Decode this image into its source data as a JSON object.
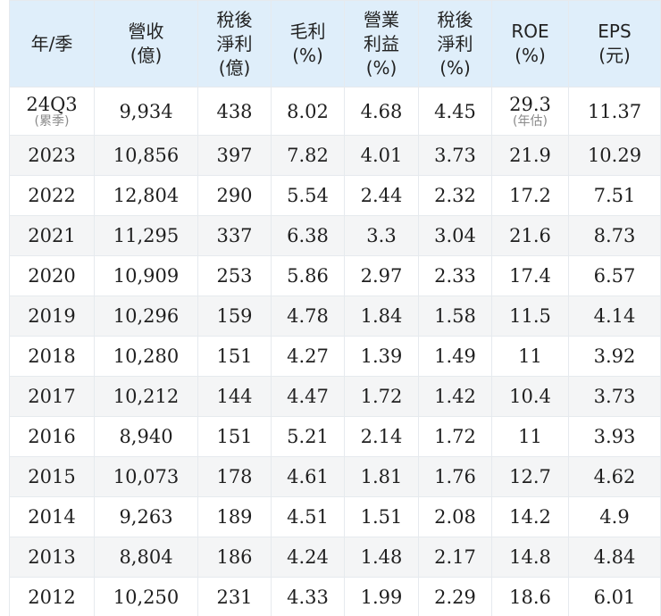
{
  "table": {
    "headers": [
      {
        "lines": [
          "年/季"
        ]
      },
      {
        "lines": [
          "營收",
          "(億)"
        ]
      },
      {
        "lines": [
          "稅後",
          "淨利",
          "(億)"
        ]
      },
      {
        "lines": [
          "毛利",
          "(%)"
        ]
      },
      {
        "lines": [
          "營業",
          "利益",
          "(%)"
        ]
      },
      {
        "lines": [
          "稅後",
          "淨利",
          "(%)"
        ]
      },
      {
        "lines": [
          "ROE",
          "(%)"
        ]
      },
      {
        "lines": [
          "EPS",
          "(元)"
        ]
      }
    ],
    "rows": [
      [
        "24Q3",
        "9,934",
        "438",
        "8.02",
        "4.68",
        "4.45",
        "29.3",
        "11.37"
      ],
      [
        "2023",
        "10,856",
        "397",
        "7.82",
        "4.01",
        "3.73",
        "21.9",
        "10.29"
      ],
      [
        "2022",
        "12,804",
        "290",
        "5.54",
        "2.44",
        "2.32",
        "17.2",
        "7.51"
      ],
      [
        "2021",
        "11,295",
        "337",
        "6.38",
        "3.3",
        "3.04",
        "21.6",
        "8.73"
      ],
      [
        "2020",
        "10,909",
        "253",
        "5.86",
        "2.97",
        "2.33",
        "17.4",
        "6.57"
      ],
      [
        "2019",
        "10,296",
        "159",
        "4.78",
        "1.84",
        "1.58",
        "11.5",
        "4.14"
      ],
      [
        "2018",
        "10,280",
        "151",
        "4.27",
        "1.39",
        "1.49",
        "11",
        "3.92"
      ],
      [
        "2017",
        "10,212",
        "144",
        "4.47",
        "1.72",
        "1.42",
        "10.4",
        "3.73"
      ],
      [
        "2016",
        "8,940",
        "151",
        "5.21",
        "2.14",
        "1.72",
        "11",
        "3.93"
      ],
      [
        "2015",
        "10,073",
        "178",
        "4.61",
        "1.81",
        "1.76",
        "12.7",
        "4.62"
      ],
      [
        "2014",
        "9,263",
        "189",
        "4.51",
        "1.51",
        "2.08",
        "14.2",
        "4.9"
      ],
      [
        "2013",
        "8,804",
        "186",
        "4.24",
        "1.48",
        "2.17",
        "14.8",
        "4.84"
      ],
      [
        "2012",
        "10,250",
        "231",
        "4.33",
        "1.99",
        "2.29",
        "18.6",
        "6.01"
      ]
    ],
    "first_row_notes": {
      "period": "(累季)",
      "roe": "(年估)"
    }
  }
}
